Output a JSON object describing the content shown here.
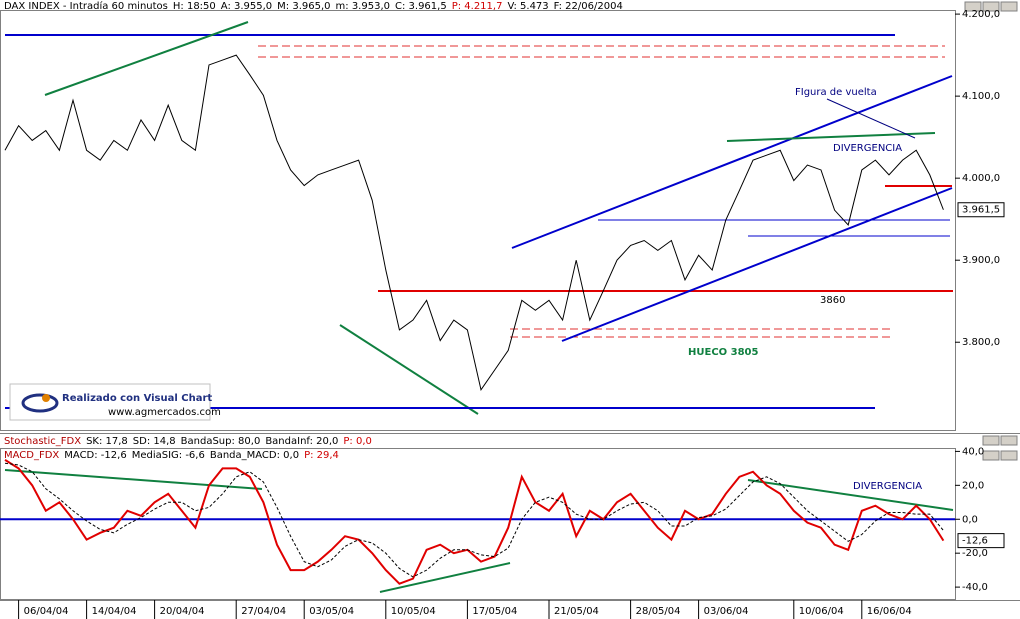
{
  "header": {
    "items": [
      {
        "text": "DAX INDEX - Intradía 60 minutos",
        "color": "#000000"
      },
      {
        "text": "H: 18:50",
        "color": "#000000"
      },
      {
        "text": "A: 3.955,0",
        "color": "#000000"
      },
      {
        "text": "M: 3.965,0",
        "color": "#000000"
      },
      {
        "text": "m: 3.953,0",
        "color": "#000000"
      },
      {
        "text": "C: 3.961,5",
        "color": "#000000"
      },
      {
        "text": "P: 4.211,7",
        "color": "#d00000"
      },
      {
        "text": "V: 5.473",
        "color": "#000000"
      },
      {
        "text": "F: 22/06/2004",
        "color": "#000000"
      }
    ]
  },
  "stochastic": {
    "items": [
      {
        "text": "Stochastic_FDX",
        "color": "#b00000"
      },
      {
        "text": "SK: 17,8",
        "color": "#000000"
      },
      {
        "text": "SD: 14,8",
        "color": "#000000"
      },
      {
        "text": "BandaSup: 80,0",
        "color": "#000000"
      },
      {
        "text": "BandaInf: 20,0",
        "color": "#000000"
      },
      {
        "text": "P: 0,0",
        "color": "#d00000"
      }
    ]
  },
  "logo": {
    "title": "Realizado con Visual Chart",
    "url": "www.agmercados.com"
  },
  "chart_data": [
    {
      "type": "line",
      "categories": [
        null,
        "06/04/04",
        null,
        null,
        null,
        null,
        "14/04/04",
        null,
        null,
        null,
        null,
        "20/04/04",
        null,
        null,
        null,
        null,
        null,
        "27/04/04",
        null,
        null,
        null,
        null,
        "03/05/04",
        null,
        null,
        null,
        null,
        null,
        "10/05/04",
        null,
        null,
        null,
        null,
        null,
        "17/05/04",
        null,
        null,
        null,
        null,
        null,
        "21/05/04",
        null,
        null,
        null,
        null,
        null,
        "28/05/04",
        null,
        null,
        null,
        null,
        "03/06/04",
        null,
        null,
        null,
        null,
        null,
        null,
        "10/06/04",
        null,
        null,
        null,
        null,
        "16/06/04",
        null,
        null,
        null,
        null,
        null,
        null
      ],
      "series": [
        {
          "name": "DAX INDEX",
          "color": "#000000",
          "values": [
            4034,
            4064,
            4046,
            4058,
            4034,
            4095,
            4034,
            4022,
            4046,
            4034,
            4071,
            4046,
            4089,
            4046,
            4034,
            4138,
            4144,
            4150,
            4126,
            4101,
            4046,
            4010,
            3991,
            4004,
            4010,
            4016,
            4022,
            3973,
            3888,
            3815,
            3827,
            3851,
            3802,
            3827,
            3815,
            3742,
            3766,
            3790,
            3851,
            3839,
            3851,
            3827,
            3900,
            3827,
            3863,
            3900,
            3918,
            3924,
            3912,
            3924,
            3876,
            3906,
            3888,
            3949,
            3985,
            4022,
            4028,
            4034,
            3997,
            4016,
            4010,
            3961,
            3943,
            4010,
            4022,
            4004,
            4022,
            4034,
            4004,
            3961.5
          ]
        }
      ],
      "last": {
        "value": 3961.5,
        "label": "3.961,5"
      },
      "ylim": [
        3693,
        4205
      ],
      "yticks": [
        {
          "value": 3800,
          "label": "3.800,0"
        },
        {
          "value": 3900,
          "label": "3.900,0"
        },
        {
          "value": 4000,
          "label": "4.000,0"
        },
        {
          "value": 4100,
          "label": "4.100,0"
        },
        {
          "value": 4200,
          "label": "4.200,0"
        }
      ],
      "annotations": [
        "3860",
        "HUECO 3805",
        "DIVERGENCIA",
        "FIgura de vuelta"
      ]
    },
    {
      "type": "line",
      "legend_items": [
        {
          "text": "MACD_FDX",
          "color": "#b00000"
        },
        {
          "text": "MACD: -12,6",
          "color": "#000000"
        },
        {
          "text": "MediaSIG: -6,6",
          "color": "#000000"
        },
        {
          "text": "Banda_MACD: 0,0",
          "color": "#000000"
        },
        {
          "text": "P: 29,4",
          "color": "#d00000"
        }
      ],
      "series": [
        {
          "name": "MACD",
          "color": "#e00000",
          "values": [
            35,
            30,
            20,
            5,
            10,
            0,
            -12,
            -8,
            -5,
            5,
            2,
            10,
            15,
            5,
            -5,
            20,
            30,
            30,
            25,
            10,
            -15,
            -30,
            -30,
            -25,
            -18,
            -10,
            -12,
            -20,
            -30,
            -38,
            -35,
            -18,
            -15,
            -20,
            -18,
            -25,
            -22,
            -5,
            25,
            10,
            5,
            15,
            -10,
            5,
            0,
            10,
            15,
            5,
            -5,
            -12,
            5,
            0,
            3,
            15,
            25,
            28,
            20,
            15,
            5,
            -2,
            -5,
            -15,
            -18,
            5,
            8,
            3,
            0,
            8,
            0,
            -12.6
          ]
        },
        {
          "name": "MediaSIG",
          "color": "#000000",
          "values": [
            33,
            32,
            28,
            18,
            12,
            5,
            -1,
            -6,
            -8,
            -3,
            1,
            6,
            10,
            10,
            5,
            7,
            15,
            25,
            28,
            22,
            7,
            -10,
            -25,
            -28,
            -24,
            -16,
            -12,
            -14,
            -20,
            -29,
            -34,
            -30,
            -23,
            -18,
            -18,
            -21,
            -22,
            -17,
            0,
            10,
            13,
            10,
            3,
            0,
            0,
            5,
            9,
            10,
            5,
            -4,
            -4,
            1,
            2,
            6,
            14,
            22,
            25,
            21,
            13,
            5,
            -1,
            -7,
            -13,
            -9,
            -1,
            4,
            4,
            3,
            3,
            -6.6
          ]
        }
      ],
      "last": {
        "value": -12.6,
        "label": "-12,6"
      },
      "ylim": [
        -47.6,
        42
      ],
      "yticks": [
        {
          "value": -40,
          "label": "-40,0"
        },
        {
          "value": -20,
          "label": "-20,0"
        },
        {
          "value": 0,
          "label": "0,0"
        },
        {
          "value": 20,
          "label": "20,0"
        },
        {
          "value": 40,
          "label": "40,0"
        }
      ],
      "annotations": [
        "DIVERGENCIA"
      ]
    }
  ]
}
